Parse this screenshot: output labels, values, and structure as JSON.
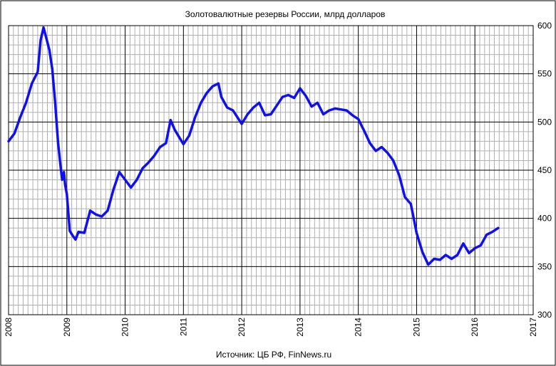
{
  "chart_data": {
    "type": "line",
    "title": "Золотовалютные резервы России, млрд долларов",
    "source": "Источник: ЦБ РФ, FinNews.ru",
    "xlabel": "",
    "ylabel": "",
    "xlim": [
      2008,
      2017
    ],
    "ylim": [
      300,
      600
    ],
    "x_ticks": [
      "2008",
      "2009",
      "2010",
      "2011",
      "2012",
      "2013",
      "2014",
      "2015",
      "2016",
      "2017"
    ],
    "y_ticks": [
      "300",
      "350",
      "400",
      "450",
      "500",
      "550",
      "600"
    ],
    "y_axis_side": "right",
    "grid": true,
    "legend": "none",
    "series": [
      {
        "color": "#1010ee",
        "x": [
          2008.0,
          2008.1,
          2008.2,
          2008.3,
          2008.4,
          2008.5,
          2008.55,
          2008.6,
          2008.7,
          2008.75,
          2008.8,
          2008.85,
          2008.9,
          2008.92,
          2008.95,
          2008.97,
          2009.0,
          2009.05,
          2009.1,
          2009.15,
          2009.2,
          2009.3,
          2009.4,
          2009.5,
          2009.6,
          2009.7,
          2009.8,
          2009.9,
          2010.0,
          2010.1,
          2010.2,
          2010.3,
          2010.4,
          2010.5,
          2010.6,
          2010.7,
          2010.78,
          2010.85,
          2011.0,
          2011.1,
          2011.2,
          2011.3,
          2011.4,
          2011.5,
          2011.6,
          2011.65,
          2011.75,
          2011.85,
          2012.0,
          2012.1,
          2012.2,
          2012.3,
          2012.4,
          2012.5,
          2012.6,
          2012.7,
          2012.8,
          2012.9,
          2013.0,
          2013.1,
          2013.2,
          2013.3,
          2013.4,
          2013.5,
          2013.6,
          2013.7,
          2013.8,
          2013.9,
          2014.0,
          2014.1,
          2014.2,
          2014.3,
          2014.4,
          2014.5,
          2014.6,
          2014.7,
          2014.8,
          2014.9,
          2014.95,
          2015.0,
          2015.1,
          2015.2,
          2015.3,
          2015.4,
          2015.5,
          2015.6,
          2015.7,
          2015.8,
          2015.9,
          2016.0,
          2016.1,
          2016.2,
          2016.3,
          2016.4
        ],
        "y": [
          480,
          488,
          505,
          520,
          540,
          552,
          585,
          598,
          575,
          555,
          520,
          478,
          450,
          440,
          448,
          435,
          425,
          387,
          382,
          378,
          386,
          385,
          408,
          404,
          402,
          408,
          430,
          448,
          440,
          432,
          440,
          452,
          458,
          465,
          474,
          478,
          502,
          492,
          477,
          486,
          505,
          520,
          530,
          537,
          540,
          526,
          515,
          512,
          498,
          508,
          515,
          520,
          507,
          508,
          517,
          526,
          528,
          525,
          535,
          527,
          516,
          520,
          508,
          512,
          514,
          513,
          512,
          507,
          503,
          491,
          478,
          470,
          474,
          468,
          460,
          445,
          422,
          415,
          400,
          385,
          365,
          352,
          358,
          357,
          362,
          358,
          362,
          374,
          364,
          369,
          372,
          383,
          386,
          390
        ]
      }
    ]
  }
}
